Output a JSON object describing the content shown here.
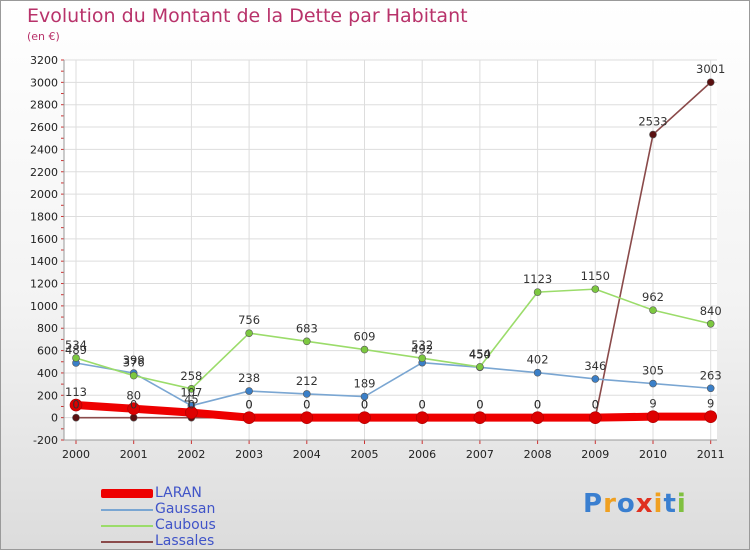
{
  "header": {
    "title": "Evolution du Montant de la Dette par Habitant",
    "subtitle": "(en €)"
  },
  "legend": {
    "items": [
      {
        "label": "LARAN",
        "color": "#ee0000"
      },
      {
        "label": "Gaussan",
        "color": "#7aa6d2"
      },
      {
        "label": "Caubous",
        "color": "#9bdc6a"
      },
      {
        "label": "Lassales",
        "color": "#8a4a4a"
      }
    ]
  },
  "logo": {
    "letters": [
      {
        "char": "P",
        "color": "#3a7fd0"
      },
      {
        "char": "r",
        "color": "#f0a020"
      },
      {
        "char": "o",
        "color": "#3a7fd0"
      },
      {
        "char": "x",
        "color": "#e03020"
      },
      {
        "char": "i",
        "color": "#f0a020"
      },
      {
        "char": "t",
        "color": "#3a7fd0"
      },
      {
        "char": "i",
        "color": "#80c040"
      }
    ]
  },
  "chart_data": {
    "type": "line",
    "title": "Evolution du Montant de la Dette par Habitant",
    "subtitle": "(en €)",
    "xlabel": "",
    "ylabel": "",
    "categories": [
      "2000",
      "2001",
      "2002",
      "2003",
      "2004",
      "2005",
      "2006",
      "2007",
      "2008",
      "2009",
      "2010",
      "2011"
    ],
    "ylim": [
      -200,
      3200
    ],
    "yticks": [
      -200,
      0,
      200,
      400,
      600,
      800,
      1000,
      1200,
      1400,
      1600,
      1800,
      2000,
      2200,
      2400,
      2600,
      2800,
      3000,
      3200
    ],
    "grid": true,
    "legend_position": "bottom-left",
    "series": [
      {
        "name": "LARAN",
        "color": "#ee0000",
        "marker": "#cc0000",
        "values": [
          113,
          80,
          45,
          0,
          0,
          0,
          0,
          0,
          0,
          0,
          9,
          9
        ],
        "labels": [
          "113",
          "80",
          "45",
          "0",
          "0",
          "0",
          "0",
          "0",
          "0",
          "0",
          "9",
          "9"
        ]
      },
      {
        "name": "Gaussan",
        "color": "#7aa6d2",
        "marker": "#3a7fc8",
        "values": [
          489,
          399,
          107,
          238,
          212,
          189,
          492,
          450,
          402,
          346,
          305,
          263
        ],
        "labels": [
          "489",
          "399",
          "107",
          "238",
          "212",
          "189",
          "492",
          "450",
          "402",
          "346",
          "305",
          "263"
        ]
      },
      {
        "name": "Caubous",
        "color": "#9bdc6a",
        "marker": "#7cc840",
        "values": [
          534,
          376,
          258,
          756,
          683,
          609,
          532,
          454,
          1123,
          1150,
          962,
          840
        ],
        "labels": [
          "534",
          "376",
          "258",
          "756",
          "683",
          "609",
          "532",
          "454",
          "1123",
          "1150",
          "962",
          "840"
        ]
      },
      {
        "name": "Lassales",
        "color": "#8a4a4a",
        "marker": "#5a1010",
        "values": [
          0,
          0,
          0,
          0,
          0,
          0,
          0,
          0,
          0,
          0,
          2533,
          3001
        ],
        "labels": [
          "0",
          "0",
          "0",
          "0",
          "0",
          "0",
          "0",
          "0",
          "0",
          "0",
          "2533",
          "3001"
        ]
      }
    ]
  }
}
